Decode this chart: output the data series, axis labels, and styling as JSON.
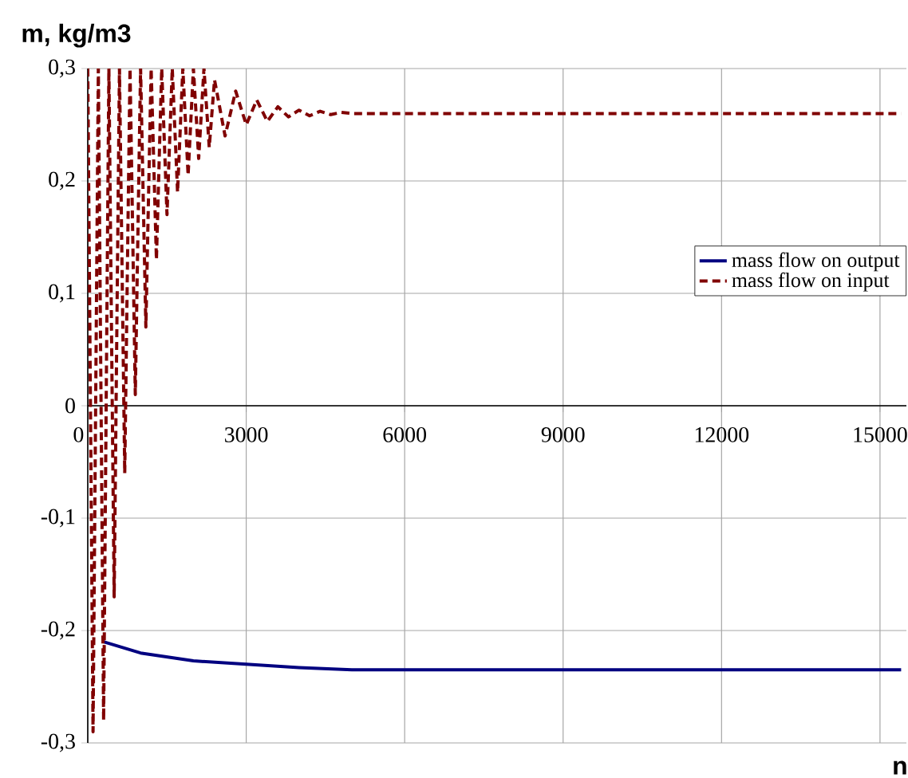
{
  "chart_data": {
    "type": "line",
    "xlabel": "n",
    "ylabel": "m, kg/m3",
    "xlim": [
      0,
      15500
    ],
    "ylim": [
      -0.3,
      0.3
    ],
    "xticks": [
      0,
      3000,
      6000,
      9000,
      12000,
      15000
    ],
    "yticks": [
      {
        "value": -0.3,
        "label": "-0,3"
      },
      {
        "value": -0.2,
        "label": "-0,2"
      },
      {
        "value": -0.1,
        "label": "-0,1"
      },
      {
        "value": 0,
        "label": "0"
      },
      {
        "value": 0.1,
        "label": "0,1"
      },
      {
        "value": 0.2,
        "label": "0,2"
      },
      {
        "value": 0.3,
        "label": "0,3"
      }
    ],
    "grid": true,
    "legend": "right",
    "marker": "none",
    "series": [
      {
        "name": "mass flow on output",
        "color": "#000080",
        "line_style": "solid",
        "x": [
          300,
          1000,
          2000,
          3000,
          4000,
          5000,
          6000,
          9000,
          12000,
          15400
        ],
        "values": [
          -0.21,
          -0.22,
          -0.227,
          -0.23,
          -0.233,
          -0.235,
          -0.235,
          -0.235,
          -0.235,
          -0.235
        ]
      },
      {
        "name": "mass flow on input",
        "color": "#800000",
        "line_style": "dashed",
        "x": [
          0,
          100,
          200,
          300,
          400,
          500,
          600,
          700,
          800,
          900,
          1000,
          1100,
          1200,
          1300,
          1400,
          1500,
          1600,
          1700,
          1800,
          1900,
          2000,
          2100,
          2200,
          2300,
          2400,
          2600,
          2800,
          3000,
          3200,
          3400,
          3600,
          3800,
          4000,
          4200,
          4400,
          4600,
          4800,
          5000,
          15400
        ],
        "values": [
          0.3,
          -0.29,
          0.3,
          -0.28,
          0.3,
          -0.17,
          0.3,
          -0.06,
          0.3,
          0.01,
          0.3,
          0.07,
          0.3,
          0.13,
          0.3,
          0.17,
          0.3,
          0.19,
          0.3,
          0.205,
          0.3,
          0.22,
          0.3,
          0.23,
          0.29,
          0.24,
          0.28,
          0.25,
          0.272,
          0.253,
          0.266,
          0.257,
          0.263,
          0.258,
          0.262,
          0.259,
          0.261,
          0.26,
          0.26
        ]
      }
    ]
  }
}
